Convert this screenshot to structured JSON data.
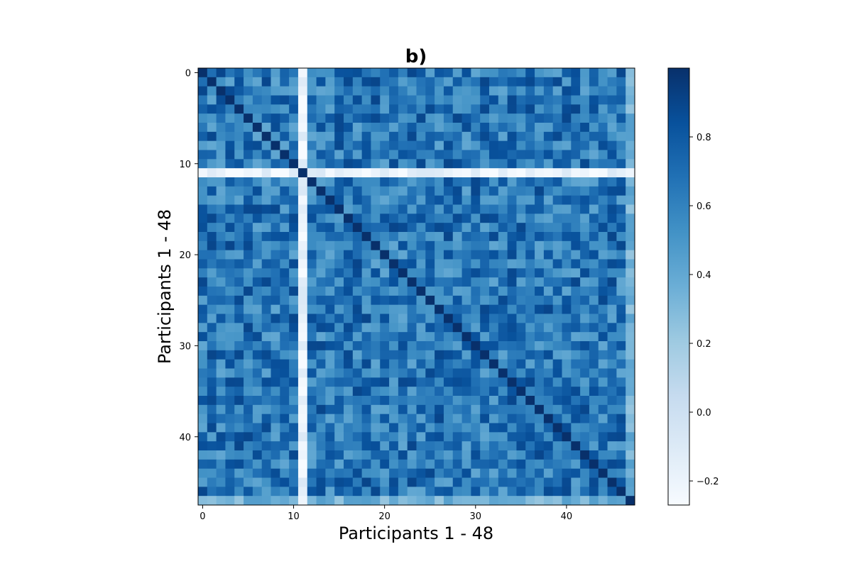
{
  "chart_data": {
    "type": "heatmap",
    "title": "b)",
    "xlabel": "Participants 1 - 48",
    "ylabel": "Participants 1 - 48",
    "n": 48,
    "x_ticks": [
      0,
      10,
      20,
      30,
      40
    ],
    "y_ticks": [
      0,
      10,
      20,
      30,
      40
    ],
    "colormap": "Blues",
    "vmin": -0.27,
    "vmax": 1.0,
    "colorbar_ticks": [
      -0.2,
      0.0,
      0.2,
      0.4,
      0.6,
      0.8
    ],
    "colorbar_tick_labels": [
      "−0.2",
      "0.0",
      "0.2",
      "0.4",
      "0.6",
      "0.8"
    ],
    "low_participants": [
      {
        "index": 11,
        "typical_value": -0.2
      },
      {
        "index": 47,
        "typical_value": 0.35
      }
    ],
    "diagonal_value": 1.0,
    "typical_offdiagonal_range": [
      0.4,
      0.9
    ]
  }
}
